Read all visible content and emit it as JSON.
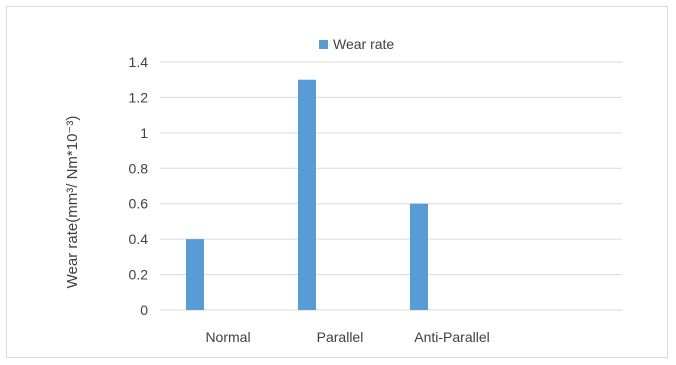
{
  "chart_data": {
    "type": "bar",
    "categories": [
      "Normal",
      "Parallel",
      "Anti-Parallel"
    ],
    "series": [
      {
        "name": "Wear rate",
        "values": [
          0.4,
          1.3,
          0.6
        ],
        "color": "#5b9bd5"
      }
    ],
    "title": "",
    "xlabel": "",
    "ylabel": "Wear rate(mm³/ Nm*10⁻³)",
    "ylim": [
      0,
      1.4
    ],
    "yticks": [
      "0",
      "0.2",
      "0.4",
      "0.6",
      "0.8",
      "1",
      "1.2",
      "1.4"
    ],
    "grid": true,
    "gridColor": "#d9d9d9",
    "legend": "top-center"
  }
}
